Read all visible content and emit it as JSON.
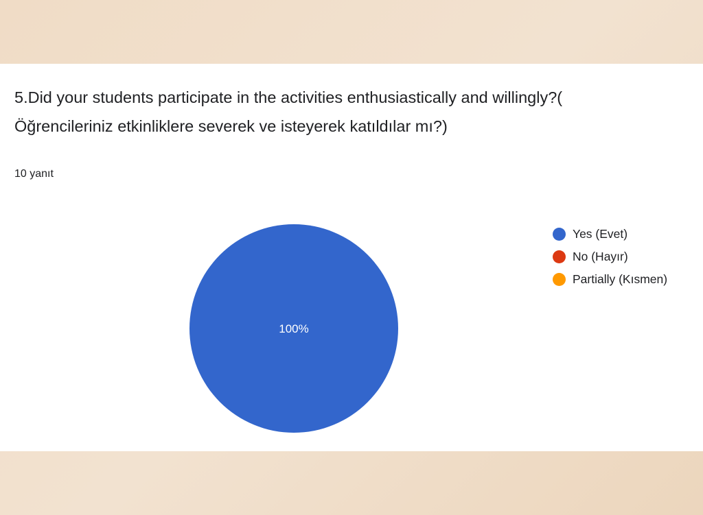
{
  "question": {
    "line1": "5.Did your students participate in the activities enthusiastically and willingly?(",
    "line2": "Öğrencileriniz etkinliklere severek ve isteyerek katıldılar mı?)"
  },
  "response_count": "10 yanıt",
  "chart_data": {
    "type": "pie",
    "title": "",
    "slices": [
      {
        "label": "Yes (Evet)",
        "value": 100,
        "color": "#3366cc"
      },
      {
        "label": "No (Hayır)",
        "value": 0,
        "color": "#dc3912"
      },
      {
        "label": "Partially (Kısmen)",
        "value": 0,
        "color": "#ff9900"
      }
    ],
    "data_labels": [
      "100%"
    ],
    "legend_position": "right"
  }
}
